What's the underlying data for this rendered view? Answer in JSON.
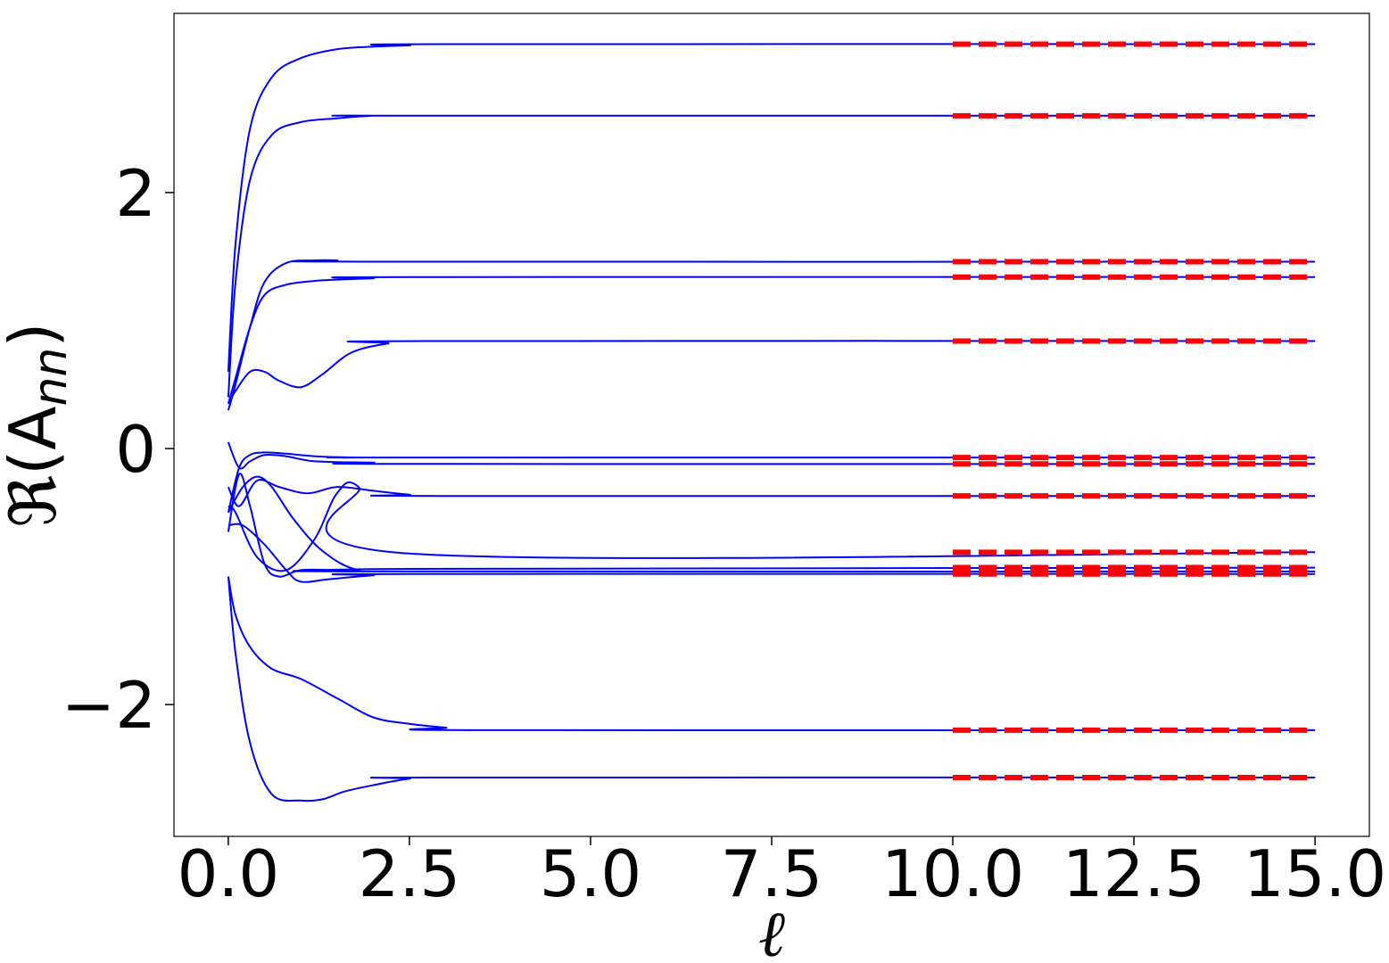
{
  "chart_data": {
    "type": "line",
    "xlabel": "ℓ",
    "ylabel": "ℜ(A",
    "ylabel_subscript": "nn",
    "ylabel_suffix": ")",
    "xlim": [
      -0.75,
      15.75
    ],
    "ylim": [
      -3.03,
      3.4
    ],
    "xticks": [
      0.0,
      2.5,
      5.0,
      7.5,
      10.0,
      12.5,
      15.0
    ],
    "xtick_labels": [
      "0.0",
      "2.5",
      "5.0",
      "7.5",
      "10.0",
      "12.5",
      "15.0"
    ],
    "yticks": [
      -2,
      0,
      2
    ],
    "ytick_labels": [
      "−2",
      "0",
      "2"
    ],
    "grid": false,
    "legend": "none",
    "colors": {
      "flow": "#0000ff",
      "asymptote": "#ff0000",
      "axes": "#000000"
    },
    "series": [
      {
        "x": [
          0.0,
          0.1,
          0.3,
          0.6,
          1.0,
          1.5,
          2.0,
          2.5,
          3.0,
          15.0
        ],
        "y": [
          0.6,
          1.6,
          2.5,
          2.9,
          3.05,
          3.12,
          3.14,
          3.15,
          3.16,
          3.16
        ]
      },
      {
        "x": [
          0.0,
          0.1,
          0.3,
          0.6,
          1.0,
          1.5,
          2.0,
          2.5,
          15.0
        ],
        "y": [
          0.4,
          1.3,
          2.1,
          2.45,
          2.55,
          2.58,
          2.6,
          2.6,
          2.6
        ]
      },
      {
        "x": [
          0.0,
          0.1,
          0.3,
          0.5,
          0.8,
          1.2,
          1.5,
          2.0,
          15.0
        ],
        "y": [
          0.3,
          0.5,
          0.95,
          1.3,
          1.45,
          1.47,
          1.47,
          1.46,
          1.46
        ]
      },
      {
        "x": [
          0.0,
          0.1,
          0.3,
          0.5,
          0.8,
          1.2,
          1.5,
          2.0,
          2.5,
          15.0
        ],
        "y": [
          0.35,
          0.55,
          0.95,
          1.2,
          1.28,
          1.31,
          1.32,
          1.33,
          1.34,
          1.34
        ]
      },
      {
        "x": [
          0.0,
          0.1,
          0.3,
          0.5,
          0.7,
          1.0,
          1.3,
          1.7,
          2.2,
          2.7,
          15.0
        ],
        "y": [
          0.35,
          0.45,
          0.6,
          0.6,
          0.53,
          0.48,
          0.58,
          0.75,
          0.82,
          0.84,
          0.84
        ]
      },
      {
        "x": [
          0.0,
          0.15,
          0.3,
          0.5,
          0.8,
          1.2,
          2.0,
          2.5,
          15.0
        ],
        "y": [
          0.05,
          -0.15,
          -0.1,
          -0.05,
          -0.06,
          -0.1,
          -0.11,
          -0.12,
          -0.12
        ]
      },
      {
        "x": [
          0.0,
          0.15,
          0.3,
          0.5,
          0.8,
          1.2,
          1.8,
          2.5,
          15.0
        ],
        "y": [
          -0.5,
          -0.15,
          -0.05,
          -0.03,
          -0.04,
          -0.06,
          -0.07,
          -0.07,
          -0.07
        ]
      },
      {
        "x": [
          0.0,
          0.15,
          0.4,
          0.7,
          1.1,
          1.5,
          2.0,
          2.5,
          3.0,
          15.0
        ],
        "y": [
          -0.3,
          -0.45,
          -0.25,
          -0.3,
          -0.35,
          -0.3,
          -0.33,
          -0.36,
          -0.37,
          -0.37
        ]
      },
      {
        "x": [
          0.0,
          0.1,
          0.4,
          0.8,
          1.2,
          1.5,
          1.8,
          2.5,
          15.0
        ],
        "y": [
          -0.45,
          -0.5,
          -0.85,
          -0.95,
          -0.7,
          -0.35,
          -0.3,
          -0.82,
          -0.81
        ]
      },
      {
        "x": [
          0.0,
          0.2,
          0.4,
          0.6,
          0.9,
          1.3,
          1.8,
          2.5,
          15.0
        ],
        "y": [
          -0.5,
          -0.3,
          -0.22,
          -0.3,
          -0.55,
          -0.8,
          -0.95,
          -0.94,
          -0.93
        ]
      },
      {
        "x": [
          0.0,
          0.15,
          0.3,
          0.5,
          0.7,
          1.0,
          1.5,
          2.0,
          15.0
        ],
        "y": [
          -0.65,
          -0.2,
          -0.45,
          -0.9,
          -1.0,
          -0.95,
          -0.95,
          -0.96,
          -0.96
        ]
      },
      {
        "x": [
          0.0,
          0.2,
          0.5,
          0.8,
          1.0,
          1.4,
          2.0,
          2.5,
          15.0
        ],
        "y": [
          -0.6,
          -0.6,
          -0.75,
          -0.95,
          -1.04,
          -1.02,
          -0.99,
          -0.98,
          -0.98
        ]
      },
      {
        "x": [
          0.0,
          0.1,
          0.3,
          0.6,
          1.0,
          1.5,
          2.0,
          2.5,
          3.0,
          3.5,
          15.0
        ],
        "y": [
          -1.0,
          -1.3,
          -1.55,
          -1.72,
          -1.8,
          -1.95,
          -2.1,
          -2.15,
          -2.18,
          -2.2,
          -2.2
        ]
      },
      {
        "x": [
          0.0,
          0.1,
          0.3,
          0.6,
          1.0,
          1.3,
          1.6,
          2.0,
          2.5,
          3.0,
          15.0
        ],
        "y": [
          -1.0,
          -1.6,
          -2.3,
          -2.7,
          -2.75,
          -2.74,
          -2.68,
          -2.63,
          -2.58,
          -2.57,
          -2.57
        ]
      }
    ],
    "asymptotes": {
      "x_range": [
        10.0,
        15.0
      ],
      "y": [
        3.16,
        2.6,
        1.46,
        1.34,
        0.84,
        -0.07,
        -0.12,
        -0.37,
        -0.81,
        -0.93,
        -0.96,
        -0.98,
        -2.2,
        -2.57
      ]
    }
  }
}
